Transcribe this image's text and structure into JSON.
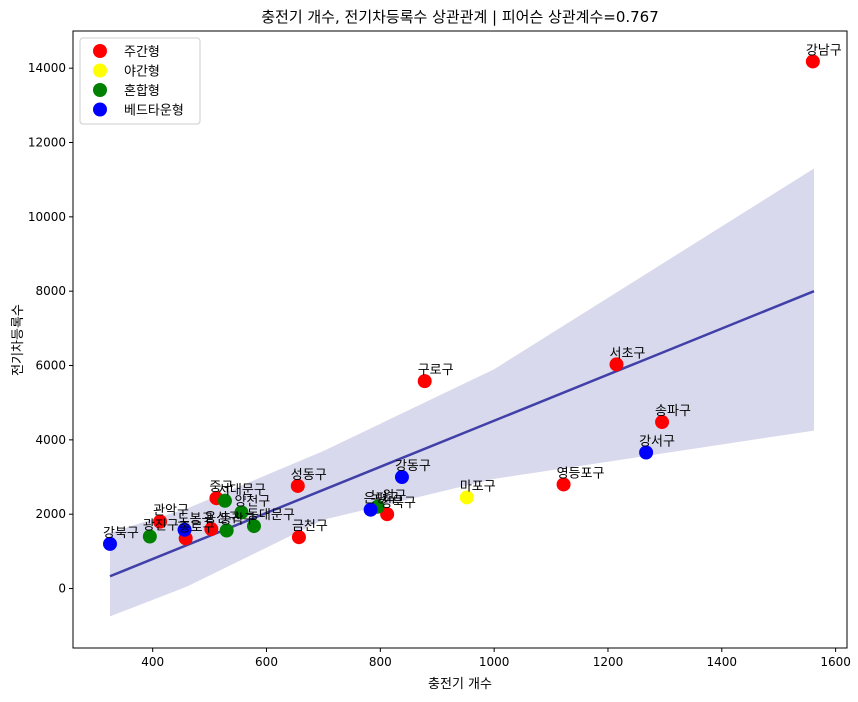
{
  "chart_data": {
    "type": "scatter",
    "title": "충전기 개수, 전기차등록수 상관관계 | 피어슨 상관계수=0.767",
    "xlabel": "충전기 개수",
    "ylabel": "전기차등록수",
    "xlim": [
      260,
      1620
    ],
    "ylim": [
      -1600,
      15000
    ],
    "xticks": [
      400,
      600,
      800,
      1000,
      1200,
      1400,
      1600
    ],
    "yticks": [
      0,
      2000,
      4000,
      6000,
      8000,
      10000,
      12000,
      14000
    ],
    "legend_position": "top-left",
    "series": [
      {
        "name": "주간형",
        "color": "#ff0000"
      },
      {
        "name": "야간형",
        "color": "#ffff00"
      },
      {
        "name": "혼합형",
        "color": "#008000"
      },
      {
        "name": "베드타운형",
        "color": "#0000ff"
      }
    ],
    "points": [
      {
        "label": "강남구",
        "x": 1560,
        "y": 14180,
        "series": "주간형"
      },
      {
        "label": "서초구",
        "x": 1215,
        "y": 6030,
        "series": "주간형"
      },
      {
        "label": "송파구",
        "x": 1295,
        "y": 4480,
        "series": "주간형"
      },
      {
        "label": "구로구",
        "x": 878,
        "y": 5580,
        "series": "주간형"
      },
      {
        "label": "영등포구",
        "x": 1122,
        "y": 2800,
        "series": "주간형"
      },
      {
        "label": "성동구",
        "x": 655,
        "y": 2760,
        "series": "주간형"
      },
      {
        "label": "성북구",
        "x": 812,
        "y": 2000,
        "series": "주간형"
      },
      {
        "label": "금천구",
        "x": 657,
        "y": 1380,
        "series": "주간형"
      },
      {
        "label": "중구",
        "x": 512,
        "y": 2430,
        "series": "주간형"
      },
      {
        "label": "종로구",
        "x": 458,
        "y": 1350,
        "series": "주간형"
      },
      {
        "label": "관악구",
        "x": 413,
        "y": 1800,
        "series": "주간형"
      },
      {
        "label": "용산구",
        "x": 503,
        "y": 1600,
        "series": "주간형"
      },
      {
        "label": "마포구",
        "x": 952,
        "y": 2450,
        "series": "야간형"
      },
      {
        "label": "서대문구",
        "x": 527,
        "y": 2360,
        "series": "혼합형"
      },
      {
        "label": "양천구",
        "x": 556,
        "y": 2050,
        "series": "혼합형"
      },
      {
        "label": "동작구",
        "x": 530,
        "y": 1560,
        "series": "혼합형"
      },
      {
        "label": "동대문구",
        "x": 578,
        "y": 1680,
        "series": "혼합형"
      },
      {
        "label": "노원구",
        "x": 795,
        "y": 2200,
        "series": "혼합형"
      },
      {
        "label": "광진구",
        "x": 395,
        "y": 1400,
        "series": "혼합형"
      },
      {
        "label": "강동구",
        "x": 838,
        "y": 3000,
        "series": "베드타운형"
      },
      {
        "label": "강서구",
        "x": 1267,
        "y": 3660,
        "series": "베드타운형"
      },
      {
        "label": "은평구",
        "x": 783,
        "y": 2120,
        "series": "베드타운형"
      },
      {
        "label": "강북구",
        "x": 325,
        "y": 1200,
        "series": "베드타운형"
      },
      {
        "label": "도봉구",
        "x": 456,
        "y": 1580,
        "series": "베드타운형"
      }
    ],
    "regression": {
      "x": [
        325,
        1562
      ],
      "y": [
        330,
        8000
      ],
      "ci_upper": [
        1500,
        11300
      ],
      "ci_lower": [
        -750,
        4250
      ]
    }
  }
}
